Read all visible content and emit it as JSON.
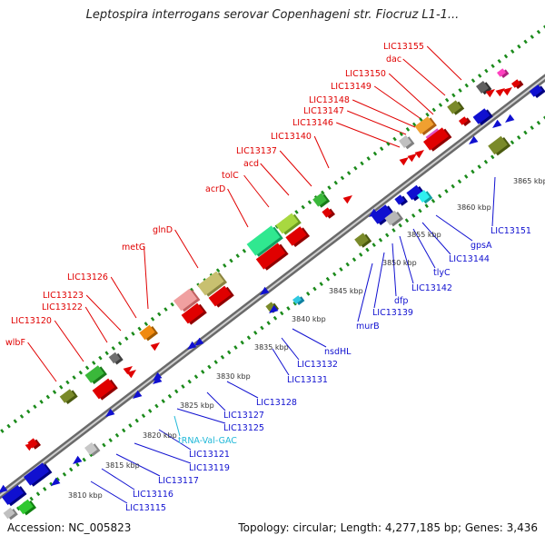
{
  "title": "Leptospira interrogans serovar Copenhageni str. Fiocruz L1-1...",
  "accession": "Accession: NC_005823",
  "summary": "Topology: circular; Length: 4,277,185 bp; Genes: 3,436",
  "colors": {
    "forward": "#e00000",
    "reverse": "#1010d0",
    "trna": "#20b8d8",
    "ticks": "#1a8a1a",
    "backbone": "#999999"
  },
  "forward_genes": [
    "wlbF",
    "LIC13120",
    "LIC13122",
    "LIC13123",
    "LIC13126",
    "metG",
    "glnD",
    "acrD",
    "tolC",
    "acd",
    "LIC13137",
    "LIC13140",
    "LIC13146",
    "LIC13147",
    "LIC13148",
    "LIC13149",
    "LIC13150",
    "dac",
    "LIC13155"
  ],
  "reverse_genes": [
    "LIC13115",
    "LIC13116",
    "LIC13117",
    "LIC13119",
    "LIC13121",
    "tRNA-Val-GAC",
    "LIC13125",
    "LIC13127",
    "LIC13128",
    "LIC13131",
    "LIC13132",
    "nsdHL",
    "murB",
    "LIC13139",
    "dfp",
    "LIC13142",
    "tlyC",
    "LIC13144",
    "gpsA",
    "LIC13151"
  ],
  "scale_ticks": [
    "3810 kbp",
    "3815 kbp",
    "3820 kbp",
    "3825 kbp",
    "3830 kbp",
    "3835 kbp",
    "3840 kbp",
    "3845 kbp",
    "3850 kbp",
    "3855 kbp",
    "3860 kbp",
    "3865 kbp"
  ]
}
